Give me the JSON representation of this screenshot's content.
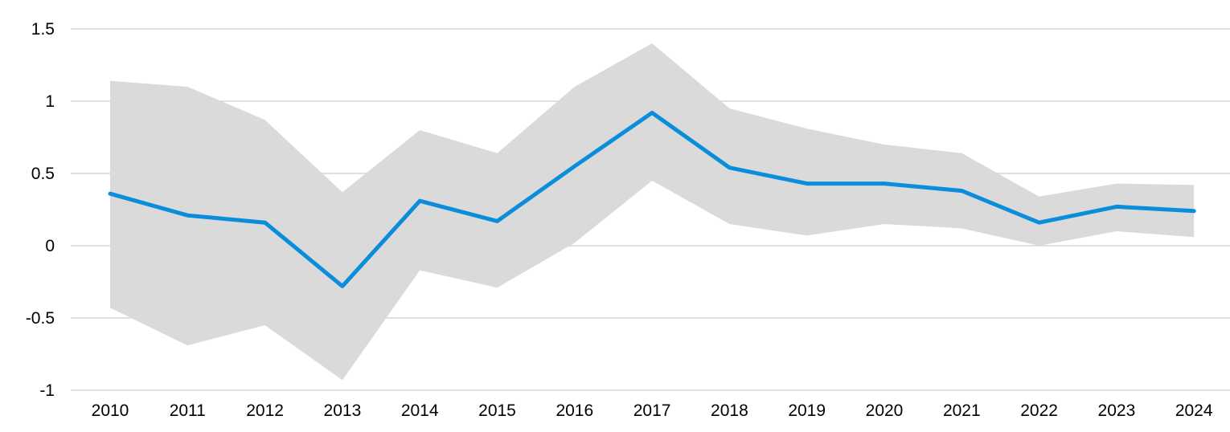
{
  "chart_data": {
    "type": "line",
    "title": "",
    "xlabel": "",
    "ylabel": "",
    "x": [
      "2010",
      "2011",
      "2012",
      "2013",
      "2014",
      "2015",
      "2016",
      "2017",
      "2018",
      "2019",
      "2020",
      "2021",
      "2022",
      "2023",
      "2024"
    ],
    "series": [
      {
        "values": [
          0.36,
          0.21,
          0.16,
          -0.28,
          0.31,
          0.17,
          0.55,
          0.92,
          0.54,
          0.43,
          0.43,
          0.38,
          0.16,
          0.27,
          0.24
        ],
        "color": "#0a8ddb"
      }
    ],
    "band": {
      "upper": [
        1.14,
        1.1,
        0.87,
        0.37,
        0.8,
        0.64,
        1.1,
        1.4,
        0.95,
        0.81,
        0.7,
        0.64,
        0.34,
        0.43,
        0.42
      ],
      "lower": [
        -0.43,
        -0.69,
        -0.55,
        -0.93,
        -0.17,
        -0.29,
        0.02,
        0.45,
        0.15,
        0.07,
        0.15,
        0.12,
        0.0,
        0.1,
        0.06
      ],
      "color": "#dadada"
    },
    "ylim": [
      -1,
      1.5
    ],
    "yticks": [
      "-1",
      "-0.5",
      "0",
      "0.5",
      "1",
      "1.5"
    ],
    "ytick_values": [
      -1,
      -0.5,
      0,
      0.5,
      1,
      1.5
    ],
    "grid": true,
    "grid_color": "#d6d6d6"
  }
}
